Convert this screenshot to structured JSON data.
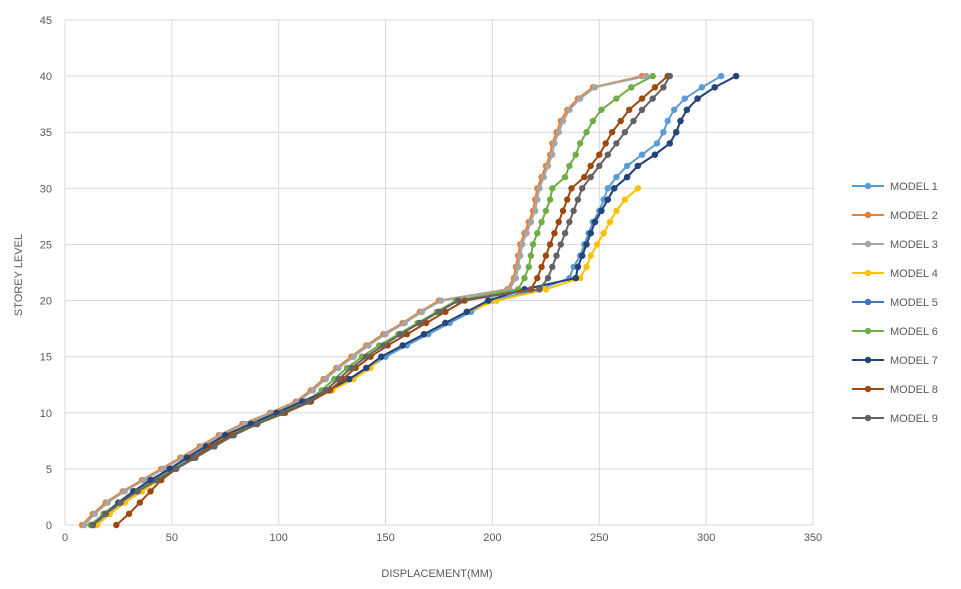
{
  "chart_data": {
    "type": "line",
    "title": "",
    "xlabel": "DISPLACEMENT(MM)",
    "ylabel": "STOREY LEVEL",
    "xlim": [
      0,
      350
    ],
    "ylim": [
      0,
      45
    ],
    "xticks": [
      "0",
      "50",
      "100",
      "150",
      "200",
      "250",
      "300",
      "350"
    ],
    "yticks": [
      "0",
      "5",
      "10",
      "15",
      "20",
      "25",
      "30",
      "35",
      "40",
      "45"
    ],
    "grid": true,
    "legend_position": "right",
    "levels": [
      0,
      1,
      2,
      3,
      4,
      5,
      6,
      7,
      8,
      9,
      10,
      11,
      12,
      13,
      14,
      15,
      16,
      17,
      18,
      19,
      20,
      21,
      22,
      23,
      24,
      25,
      26,
      27,
      28,
      29,
      30,
      31,
      32,
      33,
      34,
      35,
      36,
      37,
      38,
      39,
      40
    ],
    "series": [
      {
        "name": "MODEL 1",
        "color": "#5b9bd5",
        "x": [
          14,
          20,
          26,
          33,
          41,
          50,
          58,
          67,
          76,
          88,
          100,
          112,
          124,
          134,
          142,
          150,
          160,
          170,
          180,
          190,
          200,
          222,
          236,
          238,
          241,
          243,
          245,
          247,
          250,
          252,
          254,
          258,
          263,
          270,
          277,
          280,
          282,
          285,
          290,
          298,
          307
        ]
      },
      {
        "name": "MODEL 2",
        "color": "#ed7d31",
        "x": [
          8,
          13,
          19,
          27,
          36,
          45,
          54,
          63,
          72,
          83,
          96,
          108,
          115,
          121,
          127,
          134,
          141,
          149,
          158,
          166,
          175,
          207,
          210,
          211,
          212,
          213,
          215,
          217,
          219,
          220,
          221,
          223,
          225,
          227,
          228,
          230,
          232,
          235,
          240,
          247,
          270
        ]
      },
      {
        "name": "MODEL 3",
        "color": "#a5a5a5",
        "x": [
          9,
          14,
          20,
          28,
          37,
          46,
          55,
          64,
          73,
          84,
          97,
          109,
          116,
          122,
          128,
          135,
          142,
          150,
          159,
          167,
          176,
          208,
          211,
          212,
          213,
          214,
          216,
          218,
          220,
          221,
          222,
          224,
          226,
          228,
          229,
          231,
          233,
          236,
          241,
          248,
          272
        ]
      },
      {
        "name": "MODEL 4",
        "color": "#ffc000",
        "x": [
          15,
          21,
          28,
          36,
          44,
          52,
          60,
          68,
          77,
          89,
          101,
          113,
          125,
          135,
          143,
          148,
          158,
          168,
          178,
          188,
          202,
          225,
          241,
          244,
          246,
          249,
          252,
          255,
          258,
          262,
          268
        ]
      },
      {
        "name": "MODEL 5",
        "color": "#4472c4",
        "x": [
          13,
          19,
          25,
          32,
          40,
          49,
          57,
          66,
          75,
          87,
          99,
          111,
          123,
          133,
          141,
          148,
          158,
          168,
          178,
          188,
          198,
          215,
          239,
          240,
          242,
          244,
          246,
          248,
          251,
          254,
          257,
          263,
          268,
          276,
          283,
          286,
          288,
          291,
          296,
          304,
          314
        ]
      },
      {
        "name": "MODEL 6",
        "color": "#70ad47",
        "x": [
          12,
          18,
          25,
          33,
          42,
          51,
          60,
          69,
          78,
          89,
          101,
          113,
          120,
          126,
          132,
          139,
          147,
          156,
          165,
          174,
          183,
          212,
          215,
          217,
          218,
          219,
          221,
          223,
          225,
          227,
          228,
          234,
          236,
          239,
          241,
          244,
          247,
          251,
          258,
          265,
          275
        ]
      },
      {
        "name": "MODEL 7",
        "color": "#264478",
        "x": [
          13,
          19,
          25,
          32,
          40,
          49,
          57,
          66,
          75,
          87,
          99,
          111,
          123,
          133,
          141,
          148,
          158,
          168,
          178,
          188,
          198,
          215,
          239,
          240,
          242,
          244,
          246,
          248,
          251,
          254,
          257,
          263,
          268,
          276,
          283,
          286,
          288,
          291,
          296,
          304,
          314
        ]
      },
      {
        "name": "MODEL 8",
        "color": "#9e480e",
        "x": [
          24,
          30,
          35,
          40,
          45,
          52,
          60,
          68,
          78,
          90,
          103,
          115,
          124,
          130,
          136,
          143,
          151,
          160,
          169,
          178,
          187,
          218,
          221,
          223,
          225,
          227,
          229,
          231,
          233,
          235,
          237,
          243,
          246,
          250,
          253,
          256,
          260,
          264,
          270,
          276,
          282
        ]
      },
      {
        "name": "MODEL 9",
        "color": "#636363",
        "x": [
          13,
          19,
          26,
          34,
          43,
          52,
          61,
          70,
          79,
          90,
          102,
          114,
          122,
          128,
          134,
          141,
          149,
          157,
          166,
          175,
          184,
          222,
          226,
          228,
          230,
          232,
          234,
          236,
          238,
          240,
          242,
          246,
          250,
          254,
          258,
          262,
          266,
          270,
          275,
          280,
          283
        ]
      }
    ]
  }
}
